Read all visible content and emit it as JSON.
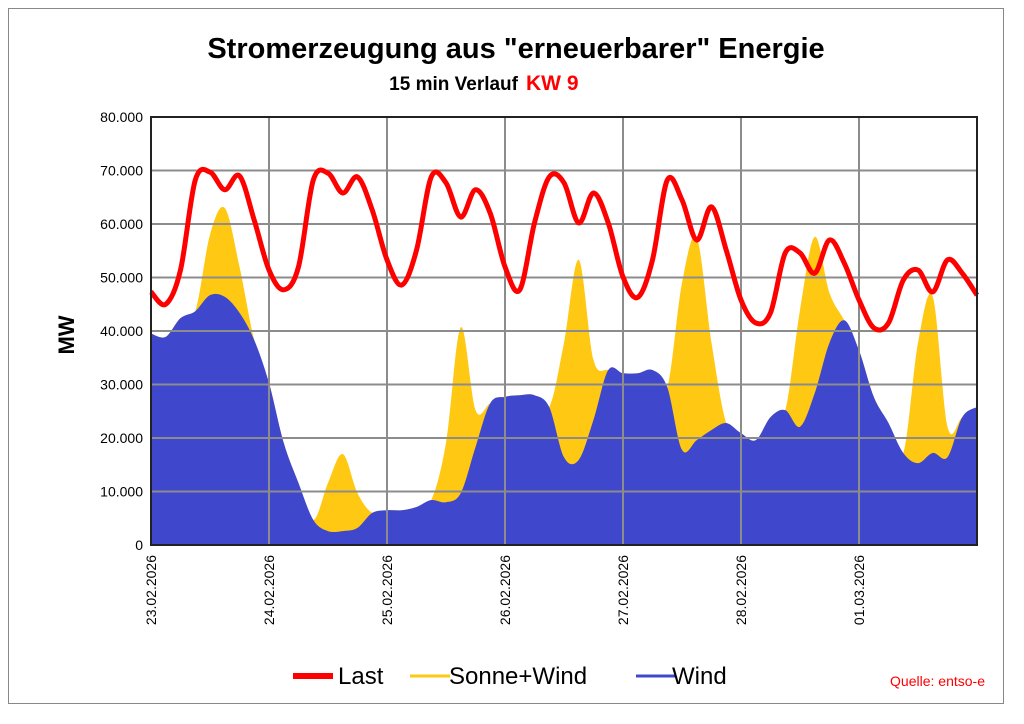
{
  "chart_data": {
    "type": "area",
    "title": "Stromerzeugung aus \"erneuerbarer\" Energie",
    "subtitle": "15 min Verlauf",
    "subtitle_highlight": "KW 9",
    "ylabel": "MW",
    "xlabel": "",
    "ylim": [
      0,
      80000
    ],
    "yticks": [
      "0",
      "10.000",
      "20.000",
      "30.000",
      "40.000",
      "50.000",
      "60.000",
      "70.000",
      "80.000"
    ],
    "xticks": [
      "23.02.2026",
      "24.02.2026",
      "25.02.2026",
      "26.02.2026",
      "27.02.2026",
      "28.02.2026",
      "01.03.2026"
    ],
    "x_range": [
      "23.02.2026 00:00",
      "02.03.2026 00:00"
    ],
    "grid": true,
    "legend_placement": "bottom",
    "source_note": "Quelle: entso-e",
    "sample_interval": "3h",
    "series": [
      {
        "name": "Last",
        "style": "line",
        "color": "#ff0000",
        "values": [
          47300,
          45000,
          51400,
          68200,
          69700,
          66400,
          69000,
          60700,
          51400,
          47700,
          52000,
          68200,
          69500,
          65800,
          68800,
          62600,
          53300,
          48600,
          55100,
          68800,
          67700,
          61300,
          66400,
          62000,
          52000,
          47700,
          60200,
          68800,
          67700,
          60200,
          65800,
          60200,
          50100,
          46300,
          53300,
          68200,
          64500,
          57000,
          63200,
          55100,
          45800,
          41500,
          43400,
          54600,
          54600,
          50800,
          57000,
          52700,
          45800,
          40600,
          41500,
          49500,
          51400,
          47300,
          53300,
          50800,
          46700
        ]
      },
      {
        "name": "Sonne+Wind",
        "style": "area",
        "color": "#ffc812",
        "values": [
          39500,
          38900,
          42400,
          43700,
          58000,
          63000,
          52000,
          38300,
          30300,
          19100,
          11600,
          4700,
          11600,
          17000,
          9700,
          6000,
          6500,
          6500,
          7100,
          8400,
          19100,
          40700,
          25200,
          26500,
          27700,
          28000,
          28000,
          25800,
          37800,
          53300,
          34600,
          32700,
          32100,
          32100,
          32700,
          29500,
          49000,
          57400,
          37800,
          22800,
          20900,
          19600,
          23900,
          25200,
          43900,
          57600,
          47100,
          42000,
          36400,
          27700,
          22800,
          17200,
          37800,
          46400,
          22100,
          23900,
          25800
        ]
      },
      {
        "name": "Wind",
        "style": "area",
        "color": "#3f48cc",
        "values": [
          39500,
          38900,
          42400,
          43700,
          46700,
          46400,
          43400,
          38300,
          30300,
          19100,
          11600,
          4700,
          2600,
          2600,
          3200,
          6000,
          6500,
          6500,
          7100,
          8400,
          8000,
          9700,
          18300,
          26500,
          27700,
          28000,
          28000,
          25800,
          16400,
          15900,
          23400,
          32700,
          32100,
          32100,
          32700,
          29500,
          17800,
          19600,
          21500,
          22800,
          20900,
          19600,
          23900,
          25200,
          22100,
          28400,
          37800,
          42000,
          36400,
          27700,
          22800,
          17200,
          15300,
          17200,
          16400,
          23900,
          25800
        ]
      }
    ]
  }
}
